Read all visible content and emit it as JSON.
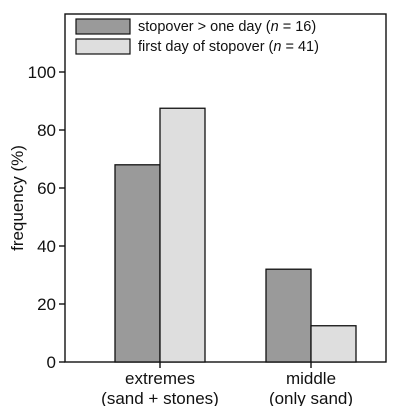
{
  "chart_data": {
    "type": "bar",
    "title": "",
    "xlabel": "",
    "ylabel": "frequency (%)",
    "ylim": [
      0,
      120
    ],
    "yticks": [
      0,
      20,
      40,
      60,
      80,
      100
    ],
    "categories": [
      [
        "extremes",
        "(sand + stones)"
      ],
      [
        "middle",
        "(only sand)"
      ]
    ],
    "series": [
      {
        "name_parts": [
          "stopover > one day (",
          "n",
          " = 16)"
        ],
        "color": "#9a9a9a",
        "values": [
          68,
          32
        ]
      },
      {
        "name_parts": [
          "first day of stopover (",
          "n",
          " = 41)"
        ],
        "color": "#dedede",
        "values": [
          87.5,
          12.5
        ]
      }
    ],
    "grid": false,
    "legend_position": "top-left"
  }
}
